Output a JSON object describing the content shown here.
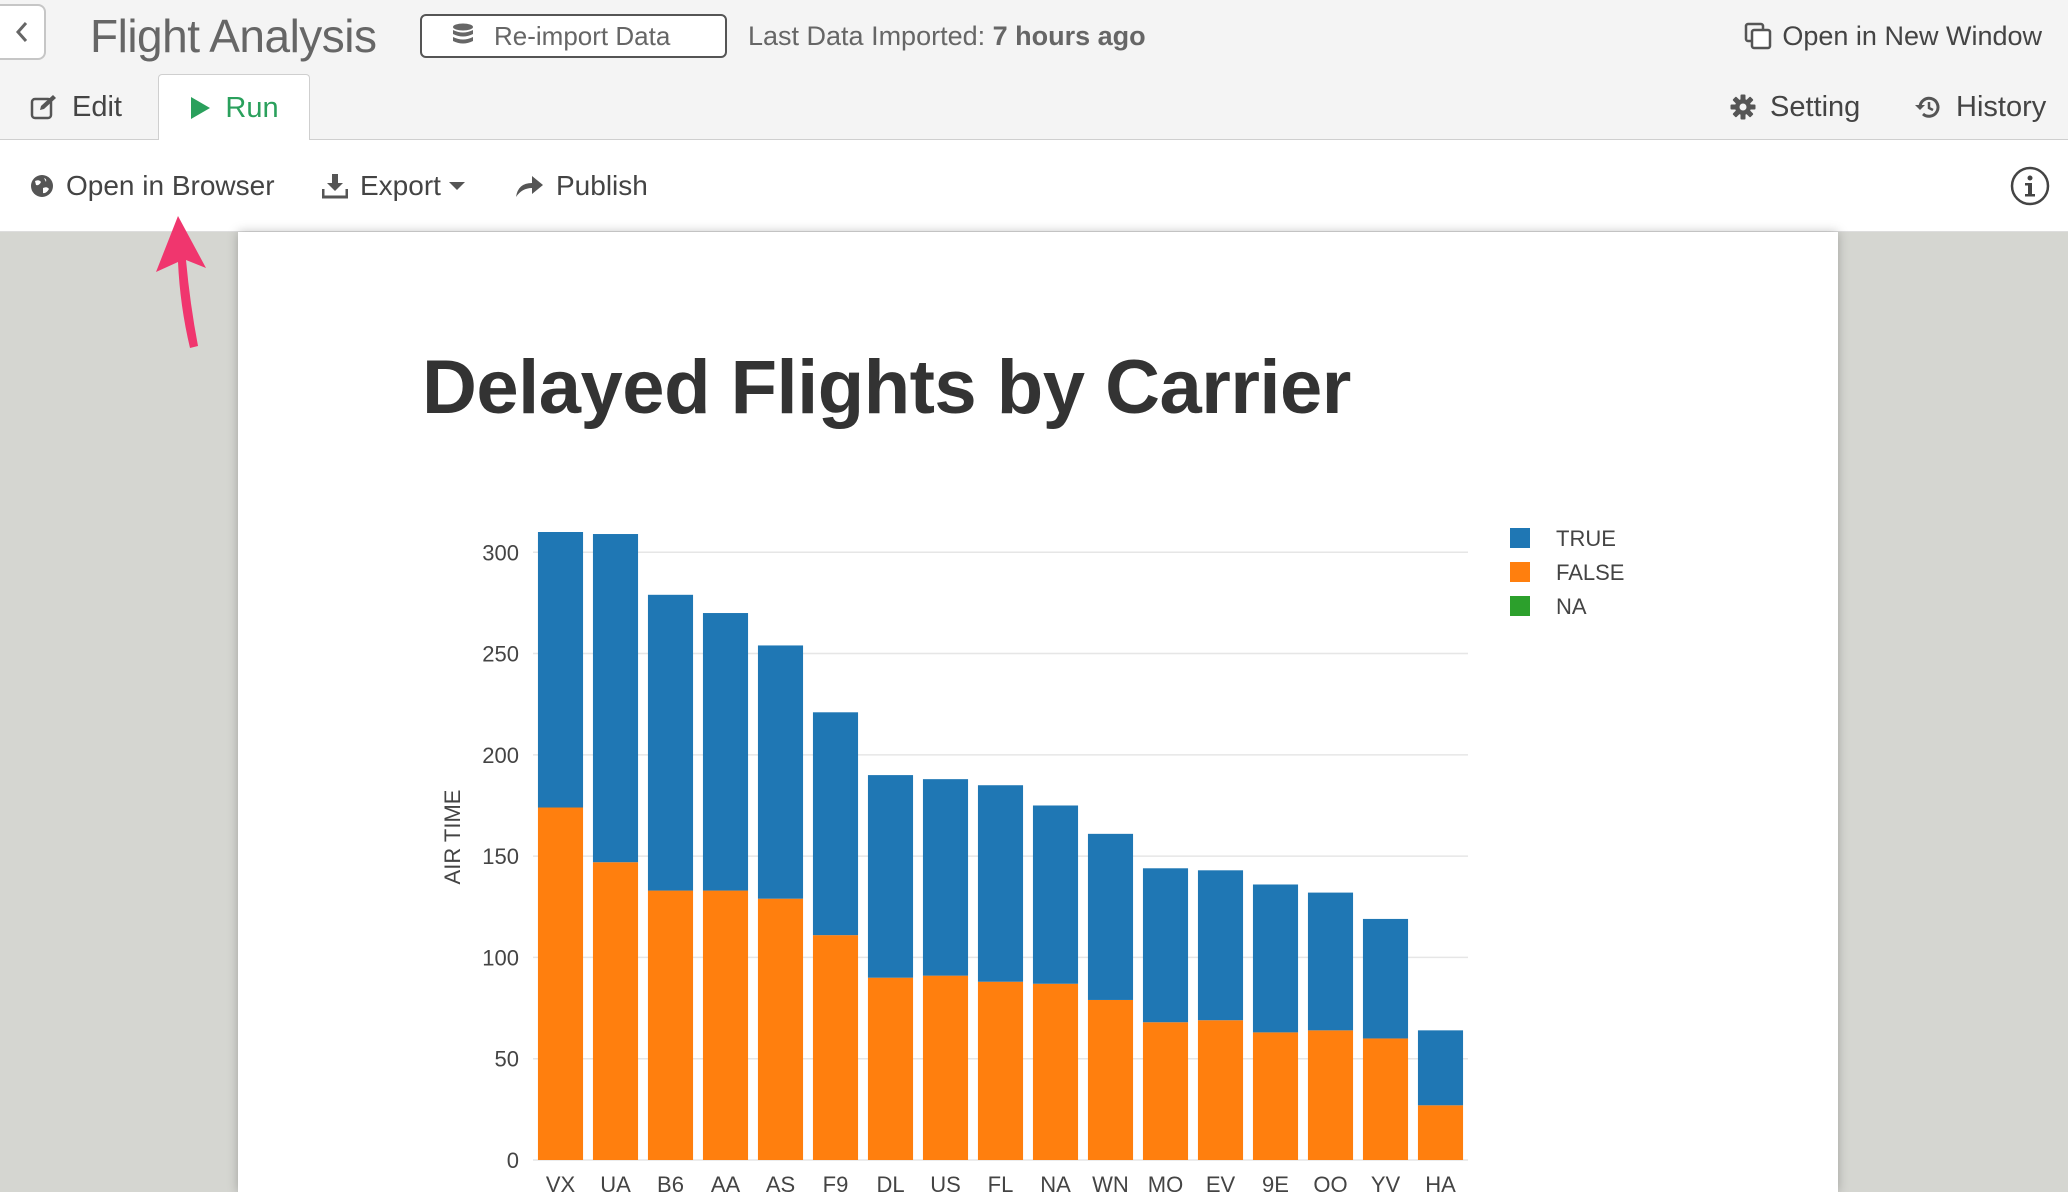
{
  "header": {
    "app_title": "Flight Analysis",
    "reimport_label": "Re-import Data",
    "import_label": "Last Data Imported:",
    "import_value": "7 hours ago",
    "open_new_window_label": "Open in New Window"
  },
  "tabs": [
    {
      "label": "Edit",
      "icon": "edit-icon"
    },
    {
      "label": "Run",
      "icon": "play-icon",
      "active": true
    }
  ],
  "right_tabs": [
    {
      "label": "Setting",
      "icon": "gear-icon"
    },
    {
      "label": "History",
      "icon": "history-icon"
    }
  ],
  "toolbar": {
    "open_browser_label": "Open in Browser",
    "export_label": "Export",
    "publish_label": "Publish"
  },
  "colors": {
    "true_series": "#1f77b4",
    "false_series": "#ff7f0e",
    "na_series": "#2ca02c",
    "run_green": "#2aa05c",
    "arrow_pink": "#f0366e"
  },
  "chart_data": {
    "type": "bar",
    "stacked": true,
    "title": "Delayed Flights by Carrier",
    "ylabel": "AIR TIME",
    "xlabel": "",
    "ylim": [
      0,
      310
    ],
    "yticks": [
      0,
      50,
      100,
      150,
      200,
      250,
      300
    ],
    "legend_position": "top-right",
    "categories": [
      "VX",
      "UA",
      "B6",
      "AA",
      "AS",
      "F9",
      "DL",
      "US",
      "FL",
      "NA",
      "WN",
      "MQ",
      "EV",
      "9E",
      "OO",
      "YV",
      "HA"
    ],
    "series": [
      {
        "name": "FALSE",
        "values": [
          174,
          147,
          133,
          133,
          129,
          111,
          90,
          91,
          88,
          87,
          79,
          68,
          69,
          63,
          64,
          60,
          27
        ]
      },
      {
        "name": "TRUE",
        "values": [
          136,
          162,
          146,
          137,
          125,
          110,
          100,
          97,
          97,
          88,
          82,
          76,
          74,
          73,
          68,
          59,
          37
        ]
      },
      {
        "name": "NA",
        "values": [
          0,
          0,
          0,
          0,
          0,
          0,
          0,
          0,
          0,
          0,
          0,
          0,
          0,
          0,
          0,
          0,
          0
        ]
      }
    ],
    "legend_order": [
      "TRUE",
      "FALSE",
      "NA"
    ]
  }
}
